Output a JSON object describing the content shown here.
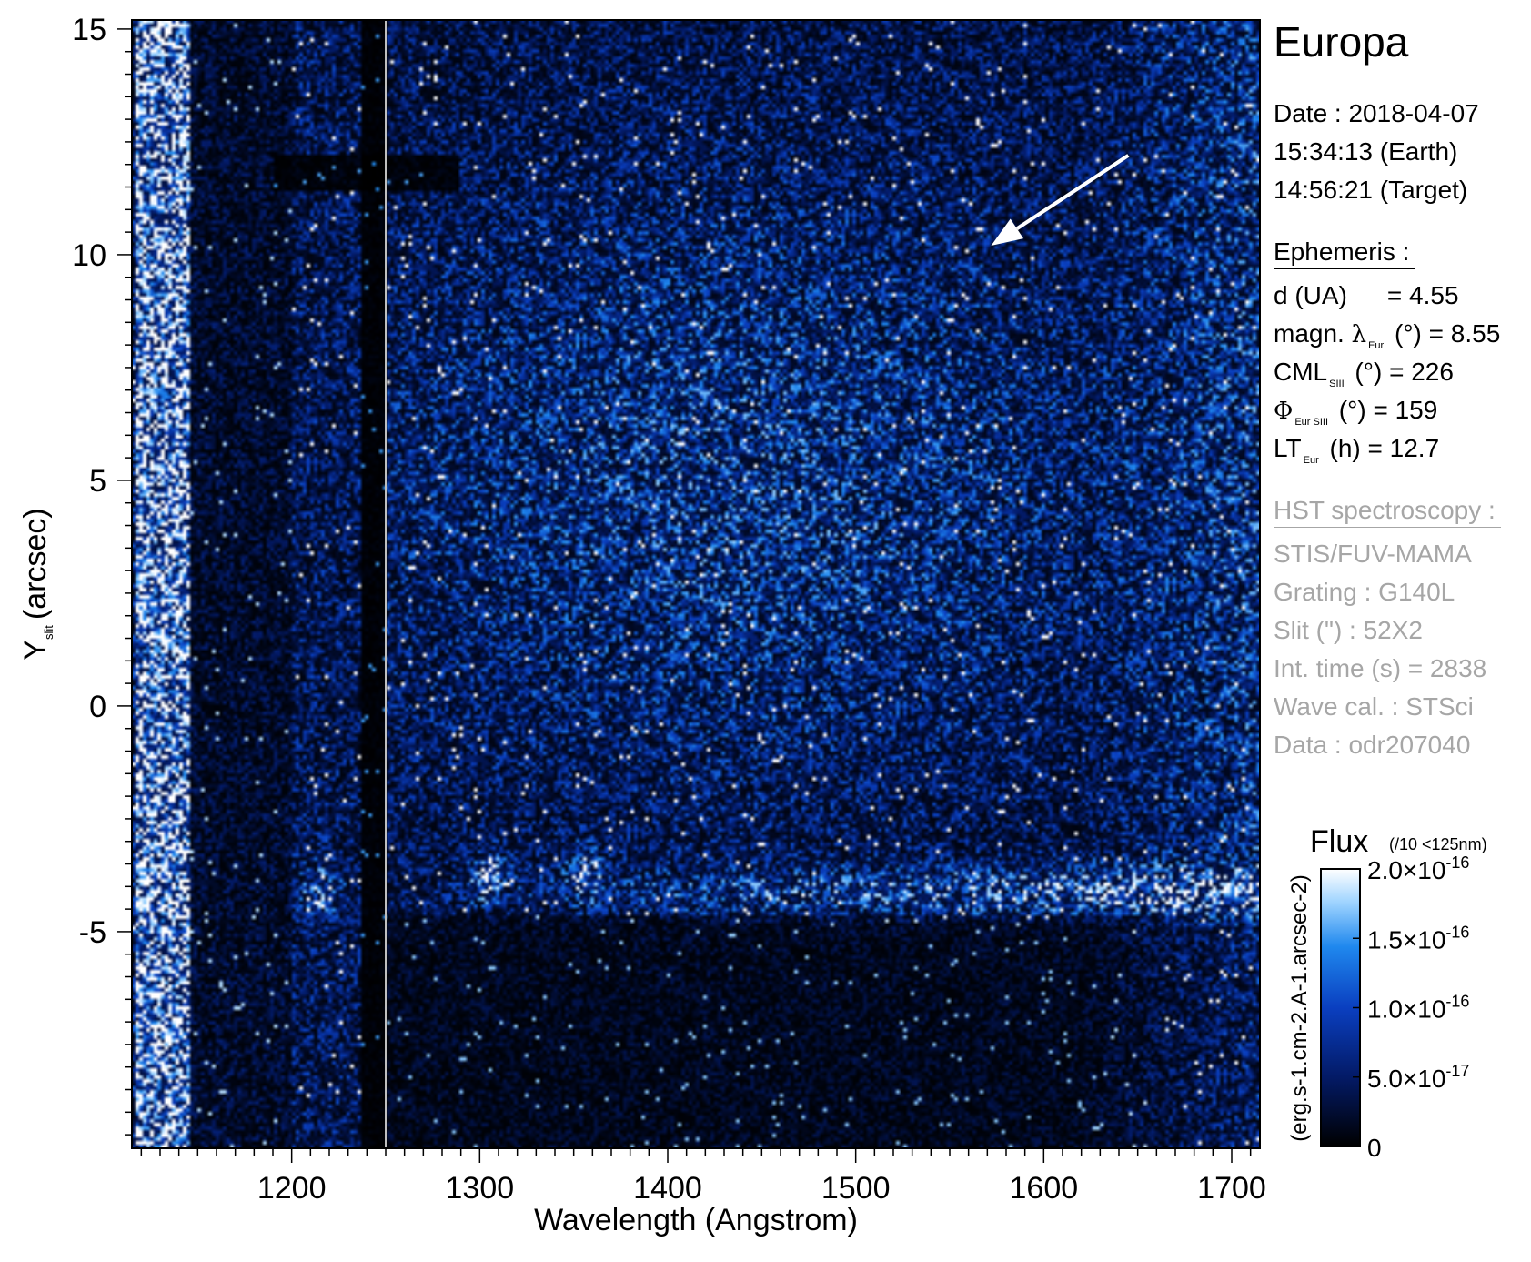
{
  "chart_data": {
    "type": "heatmap",
    "title": "",
    "xlabel": "Wavelength (Angstrom)",
    "ylabel": {
      "main": "Y",
      "sub": "slit",
      "unit": "(arcsec)"
    },
    "xlim": [
      1115,
      1715
    ],
    "ylim": [
      -9.8,
      15.2
    ],
    "x_ticks": [
      1200,
      1300,
      1400,
      1500,
      1600,
      1700
    ],
    "y_ticks": [
      -5,
      0,
      5,
      10,
      15
    ],
    "x_minor_step": 10,
    "y_minor_step": 0.5,
    "colormap": [
      "#000000",
      "#031a66",
      "#0a3fc0",
      "#1f88ee",
      "#9fd4ff",
      "#ffffff"
    ],
    "colorbar": {
      "title": "Flux",
      "title_note": "(/10 <125nm)",
      "unit_label": "(erg.s-1.cm-2.A-1.arcsec-2)",
      "range": [
        0,
        2e-16
      ],
      "ticks": [
        {
          "value": 2e-16,
          "label": "2.0×10",
          "exp": "-16"
        },
        {
          "value": 1.5e-16,
          "label": "1.5×10",
          "exp": "-16"
        },
        {
          "value": 1e-16,
          "label": "1.0×10",
          "exp": "-16"
        },
        {
          "value": 5e-17,
          "label": "5.0×10",
          "exp": "-17"
        },
        {
          "value": 0,
          "label": "0",
          "exp": ""
        }
      ]
    },
    "features": {
      "bright_band_x": [
        1117,
        1145
      ],
      "dark_gap_x": [
        1237,
        1248
      ],
      "separator_x": 1250,
      "dark_strip_y": [
        11.4,
        12.2
      ],
      "spectrum_trace_y": -4.1,
      "emission_knots": [
        {
          "x": 1216,
          "y": -4.1
        },
        {
          "x": 1304,
          "y": -3.8
        },
        {
          "x": 1356,
          "y": -3.7
        }
      ],
      "arrow": {
        "from": [
          1645,
          12.2
        ],
        "to": [
          1572,
          10.2
        ]
      }
    }
  },
  "info": {
    "target": "Europa",
    "date_line": "Date : 2018-04-07",
    "time_earth": "15:34:13 (Earth)",
    "time_target": "14:56:21 (Target)",
    "ephemeris_title": "Ephemeris :",
    "ephem": {
      "d_label": "d (UA)",
      "d_value": "= 4.55",
      "magn_prefix": "magn.",
      "lambda_symbol": "λ",
      "lambda_sub": "Eur",
      "magn_unit": "(°)",
      "magn_value": "= 8.55",
      "cml_label": "CML",
      "cml_sub": "SIII",
      "cml_unit": "(°)",
      "cml_value": "= 226",
      "phi_symbol": "Φ",
      "phi_sub": "Eur SIII",
      "phi_unit": "(°)",
      "phi_value": "= 159",
      "lt_label": "LT",
      "lt_sub": "Eur",
      "lt_unit": "(h)",
      "lt_value": "= 12.7"
    },
    "hst_title": "HST spectroscopy :",
    "hst_lines": [
      "STIS/FUV-MAMA",
      "Grating : G140L",
      "Slit (\") : 52X2",
      "Int. time (s) = 2838",
      "Wave cal. : STSci",
      "Data : odr207040"
    ]
  }
}
